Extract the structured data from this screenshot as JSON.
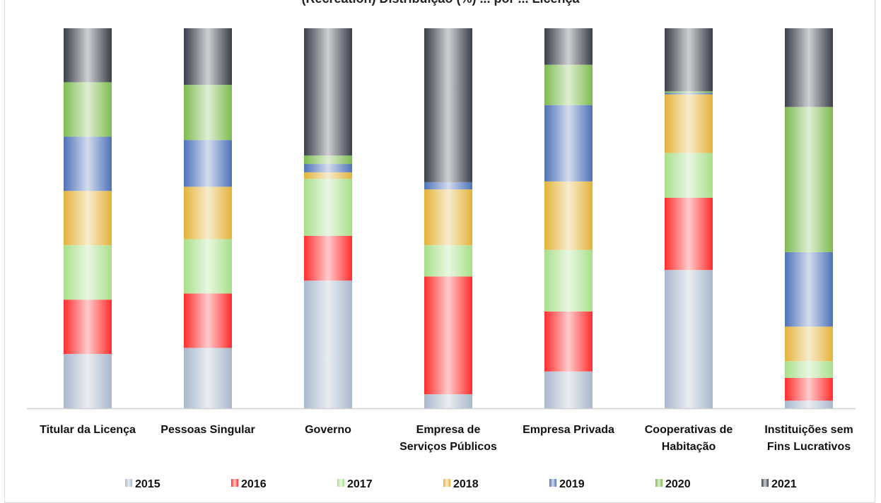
{
  "chart_data": {
    "type": "bar",
    "stacked": true,
    "normalized_percent": true,
    "title": "(Recreation) Distribuição (%) ... por ... Licença",
    "categories": [
      [
        "Titular da Licença"
      ],
      [
        "Pessoas Singular"
      ],
      [
        "Governo"
      ],
      [
        "Empresa de",
        "Serviços Públicos"
      ],
      [
        "Empresa Privada"
      ],
      [
        "Cooperativas de",
        "Habitação"
      ],
      [
        "Instituições sem",
        "Fins Lucrativos"
      ]
    ],
    "series": [
      {
        "name": "2015",
        "color": "#a9b8cc",
        "values": [
          14.3,
          15.9,
          33.6,
          3.7,
          9.7,
          36.4,
          2.0
        ]
      },
      {
        "name": "2016",
        "color": "#ff2d2d",
        "values": [
          14.3,
          14.3,
          11.8,
          31.0,
          15.8,
          19.0,
          6.0
        ]
      },
      {
        "name": "2017",
        "color": "#a8df8a",
        "values": [
          14.3,
          14.3,
          15.0,
          8.2,
          16.2,
          11.8,
          4.4
        ]
      },
      {
        "name": "2018",
        "color": "#e3b33a",
        "values": [
          14.3,
          13.8,
          1.7,
          14.7,
          18.0,
          15.4,
          9.1
        ]
      },
      {
        "name": "2019",
        "color": "#4e72b8",
        "values": [
          14.3,
          12.3,
          2.2,
          1.9,
          20.1,
          0.4,
          19.6
        ]
      },
      {
        "name": "2020",
        "color": "#7dbb50",
        "values": [
          14.3,
          14.5,
          2.2,
          0.0,
          10.6,
          0.4,
          38.2
        ]
      },
      {
        "name": "2021",
        "color": "#3a3f4a",
        "values": [
          14.2,
          14.9,
          33.5,
          40.5,
          9.6,
          16.6,
          20.7
        ]
      }
    ],
    "ylim": [
      0,
      100
    ],
    "grid": false,
    "legend_position": "bottom"
  }
}
